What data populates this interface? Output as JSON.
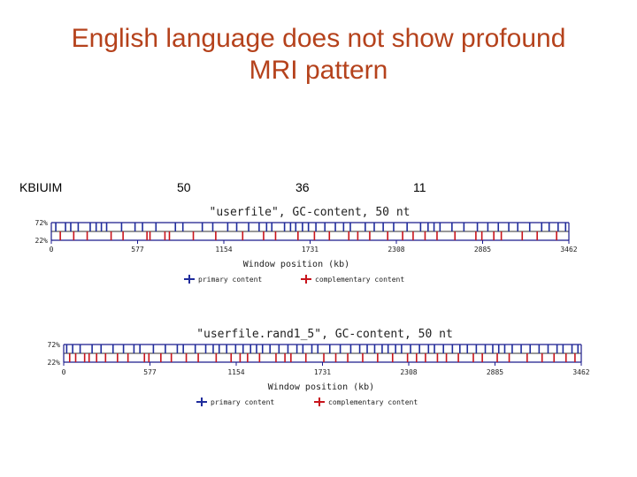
{
  "slide": {
    "title_line1": "English language does not show profound",
    "title_line2": "MRI pattern"
  },
  "header": {
    "label": "KBIUIM",
    "value1": "50",
    "value2": "36",
    "value3": "11"
  },
  "colors": {
    "title": "#b5421c",
    "primary": "#1f2c9c",
    "complementary": "#c8141c",
    "axis": "#1a1a8c"
  },
  "chart_data": [
    {
      "type": "line",
      "title": "\"userfile\", GC-content, 50 nt",
      "xlabel": "Window position (kb)",
      "x_ticks": [
        "0",
        "577",
        "1154",
        "1731",
        "2308",
        "2885",
        "3462"
      ],
      "y_ticks": [
        "72%",
        "22%"
      ],
      "xlim": [
        0,
        3462
      ],
      "series": [
        {
          "name": "primary content",
          "color": "#1f2c9c",
          "positions_kb": [
            30,
            95,
            130,
            180,
            260,
            300,
            335,
            370,
            470,
            560,
            610,
            700,
            830,
            880,
            1010,
            1080,
            1180,
            1240,
            1320,
            1390,
            1440,
            1475,
            1560,
            1600,
            1635,
            1680,
            1720,
            1770,
            1830,
            1900,
            1955,
            2000,
            2100,
            2160,
            2220,
            2290,
            2380,
            2470,
            2520,
            2560,
            2600,
            2680,
            2760,
            2850,
            2920,
            2990,
            3060,
            3120,
            3200,
            3280,
            3330,
            3390,
            3440
          ]
        },
        {
          "name": "complementary content",
          "color": "#c8141c",
          "positions_kb": [
            60,
            150,
            240,
            400,
            480,
            640,
            660,
            760,
            790,
            950,
            1100,
            1280,
            1420,
            1500,
            1650,
            1760,
            1860,
            1990,
            2050,
            2130,
            2250,
            2350,
            2420,
            2500,
            2580,
            2700,
            2840,
            2880,
            2960,
            3010,
            3150,
            3250,
            3380
          ]
        }
      ]
    },
    {
      "type": "line",
      "title": "\"userfile.rand1_5\", GC-content, 50 nt",
      "xlabel": "Window position (kb)",
      "x_ticks": [
        "0",
        "577",
        "1154",
        "1731",
        "2308",
        "2885",
        "3462"
      ],
      "y_ticks": [
        "72%",
        "22%"
      ],
      "xlim": [
        0,
        3462
      ],
      "series": [
        {
          "name": "primary content",
          "color": "#1f2c9c",
          "positions_kb": [
            20,
            60,
            110,
            190,
            250,
            330,
            400,
            470,
            510,
            600,
            680,
            760,
            800,
            880,
            950,
            1000,
            1040,
            1090,
            1150,
            1200,
            1250,
            1290,
            1330,
            1380,
            1440,
            1500,
            1560,
            1600,
            1660,
            1700,
            1780,
            1850,
            1920,
            1980,
            2030,
            2080,
            2130,
            2170,
            2220,
            2260,
            2320,
            2380,
            2440,
            2480,
            2540,
            2600,
            2650,
            2700,
            2760,
            2820,
            2870,
            2910,
            2950,
            3000,
            3060,
            3120,
            3180,
            3240,
            3300,
            3340,
            3400,
            3440
          ]
        },
        {
          "name": "complementary content",
          "color": "#c8141c",
          "positions_kb": [
            40,
            80,
            140,
            170,
            220,
            280,
            360,
            430,
            540,
            570,
            650,
            720,
            820,
            900,
            1020,
            1120,
            1180,
            1230,
            1310,
            1420,
            1480,
            1520,
            1620,
            1740,
            1820,
            1900,
            2000,
            2100,
            2200,
            2300,
            2360,
            2420,
            2500,
            2560,
            2640,
            2740,
            2800,
            2900,
            2980,
            3100,
            3200,
            3280,
            3360,
            3420
          ]
        }
      ]
    }
  ]
}
